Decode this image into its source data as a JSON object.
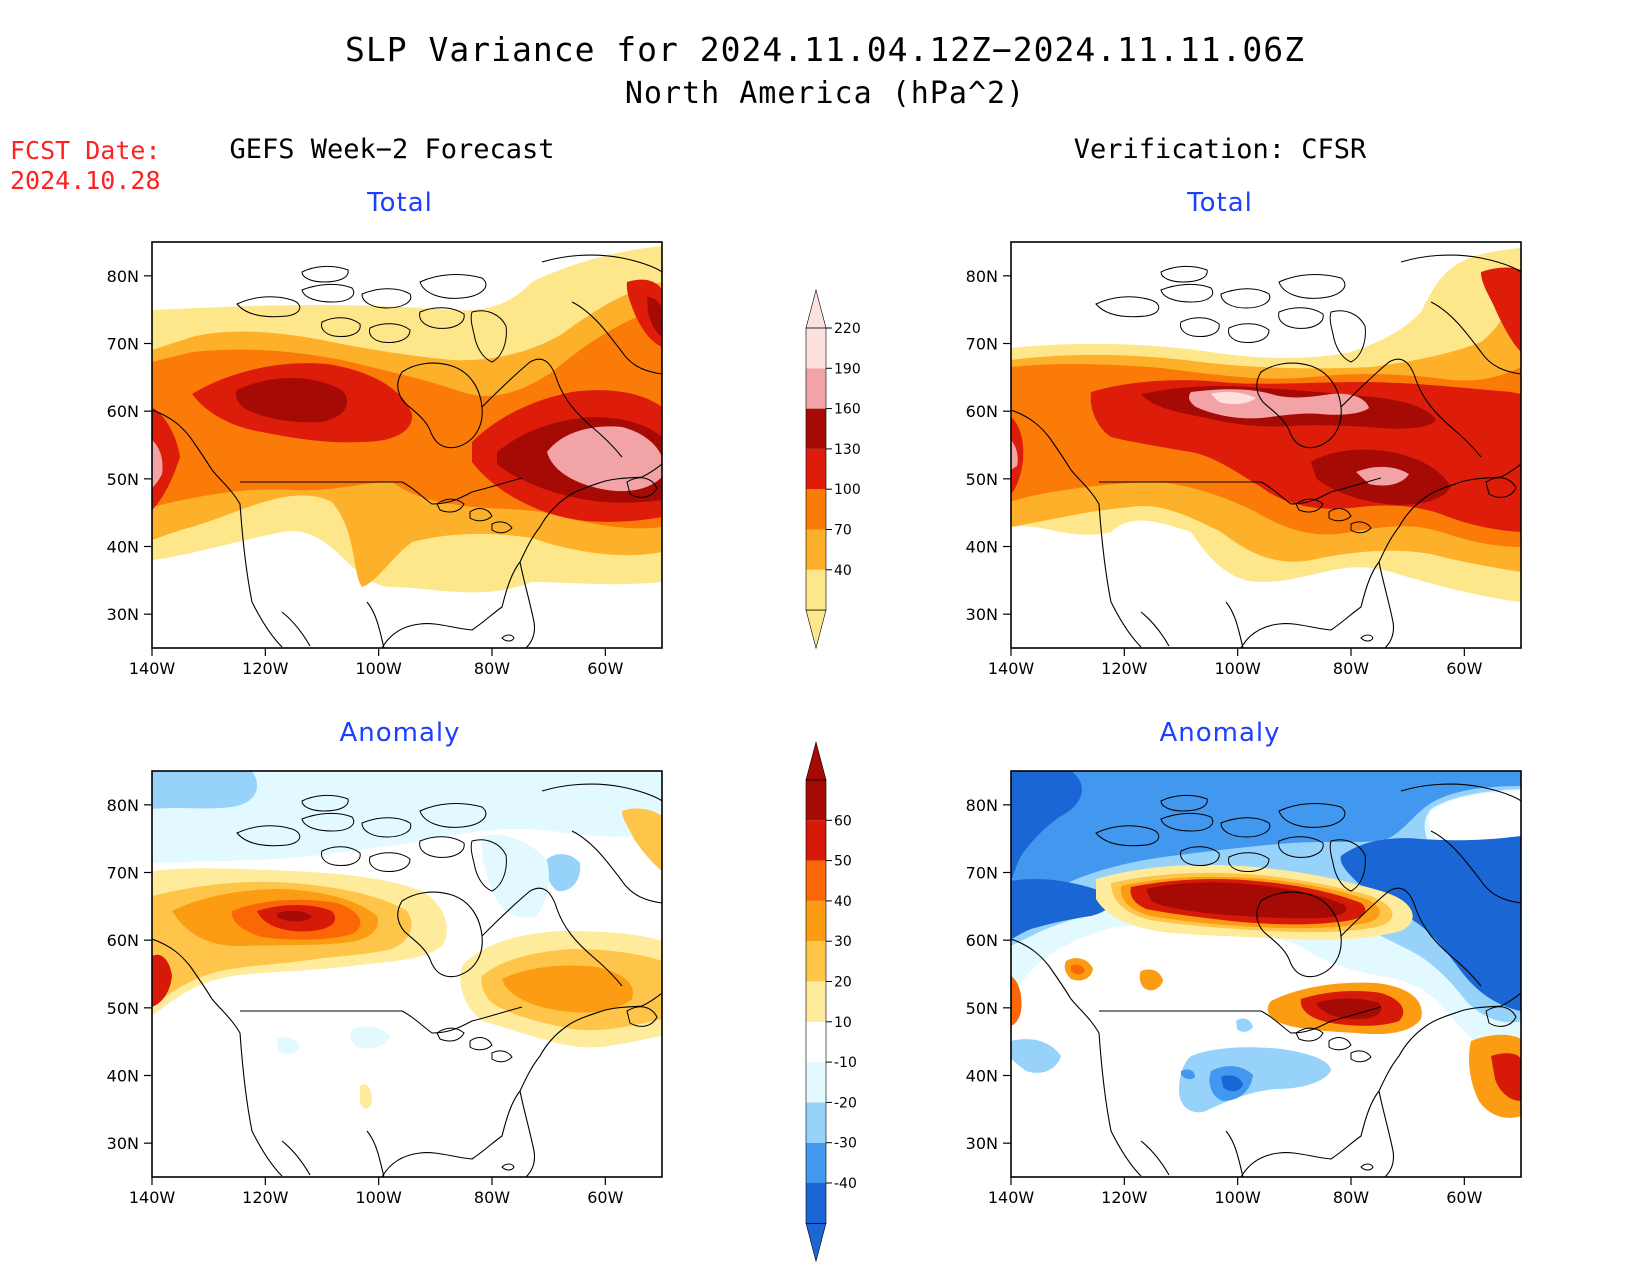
{
  "header": {
    "title": "SLP Variance for 2024.11.04.12Z−2024.11.11.06Z",
    "subtitle": "North America (hPa^2)"
  },
  "fcst": {
    "label": "FCST Date:",
    "date": "2024.10.28"
  },
  "columns": {
    "left": "GEFS Week−2 Forecast",
    "right": "Verification: CFSR"
  },
  "panel_titles": {
    "top_left": "Total",
    "top_right": "Total",
    "bottom_left": "Anomaly",
    "bottom_right": "Anomaly"
  },
  "axes": {
    "lat_ticks": [
      "80N",
      "70N",
      "60N",
      "50N",
      "40N",
      "30N"
    ],
    "lat_values": [
      80,
      70,
      60,
      50,
      40,
      30
    ],
    "lon_ticks": [
      "140W",
      "120W",
      "100W",
      "80W",
      "60W"
    ],
    "lon_values": [
      -140,
      -120,
      -100,
      -80,
      -60
    ],
    "lat_range": [
      25,
      85
    ],
    "lon_range": [
      -140,
      -50
    ]
  },
  "colorbars": {
    "total": {
      "labels": [
        "40",
        "70",
        "100",
        "130",
        "160",
        "190",
        "220"
      ],
      "colors": [
        "#fee78a",
        "#fdb02a",
        "#fb7b08",
        "#dd1c0a",
        "#a60a05",
        "#f2a3a5",
        "#fce1df"
      ]
    },
    "anomaly": {
      "labels": [
        "-40",
        "-30",
        "-20",
        "-10",
        "10",
        "20",
        "30",
        "40",
        "50",
        "60"
      ],
      "colors": [
        "#1a66d4",
        "#4297ee",
        "#96d2fa",
        "#e2f9ff",
        "#ffffff",
        "#ffeb9c",
        "#ffc54a",
        "#fb9c12",
        "#fb6606",
        "#d71a08",
        "#a50a05"
      ]
    }
  },
  "map_colors": {
    "total_40": "#fee78a",
    "total_70": "#fdb02a",
    "total_100": "#fb7b08",
    "total_130": "#dd1c0a",
    "total_160": "#a60a05",
    "total_190": "#f2a3a5",
    "total_220": "#fce1df",
    "anom_p10": "#ffeb9c",
    "anom_p20": "#ffc54a",
    "anom_p30": "#fb9c12",
    "anom_p40": "#fb6606",
    "anom_p50": "#d71a08",
    "anom_p60": "#a50a05",
    "anom_m10": "#e2f9ff",
    "anom_m20": "#96d2fa",
    "anom_m30": "#4297ee",
    "anom_m40": "#1a66d4"
  }
}
